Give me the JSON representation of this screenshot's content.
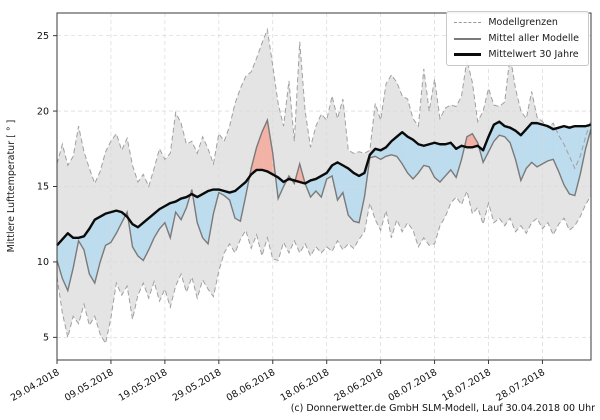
{
  "figure": {
    "ylabel": "Mittlere Lufttemperatur [ ° ]",
    "caption": "(c) Donnerwetter.de GmbH SLM-Modell, Lauf 30.04.2018 00 Uhr"
  },
  "legend": {
    "items": [
      {
        "label": "Modellgrenzen",
        "style": "dashed"
      },
      {
        "label": "Mittel aller Modelle",
        "style": "solid"
      },
      {
        "label": "Mittelwert 30 Jahre",
        "style": "bold"
      }
    ]
  },
  "chart_data": {
    "type": "line",
    "title": "",
    "xlabel": "",
    "ylabel": "Mittlere Lufttemperatur [ ° ]",
    "grid": true,
    "legend_position": "upper right",
    "ylim": [
      3.5,
      26.5
    ],
    "y_ticks": [
      5,
      10,
      15,
      20,
      25
    ],
    "x_tick_labels": [
      "29.04.2018",
      "09.05.2018",
      "19.05.2018",
      "29.05.2018",
      "08.06.2018",
      "18.06.2018",
      "28.06.2018",
      "08.07.2018",
      "18.07.2018",
      "28.07.2018"
    ],
    "x_tick_days": [
      0,
      10,
      20,
      30,
      40,
      50,
      60,
      70,
      80,
      90
    ],
    "x_days_total": 99,
    "colors": {
      "band_fill": "#e4e4e4",
      "bound_line": "#a0a0a0",
      "model_mean_line": "#7a7a7a",
      "climate_mean_line": "#0a0a0a",
      "fill_model_above": "#f2b2a6",
      "fill_model_below": "#bddcee",
      "grid": "#d9d9d9",
      "spine": "#3a3a3a"
    },
    "series": [
      {
        "name": "Modellgrenzen (Obergrenze)",
        "style": "dashed",
        "values": [
          16.5,
          17.8,
          16.4,
          17.0,
          19.0,
          17.3,
          16.2,
          15.2,
          16.0,
          17.3,
          18.0,
          18.5,
          17.4,
          18.2,
          16.4,
          15.3,
          15.8,
          15.0,
          16.2,
          17.5,
          16.8,
          17.2,
          19.9,
          19.2,
          17.8,
          18.0,
          17.2,
          18.3,
          17.5,
          16.5,
          18.5,
          18.0,
          19.0,
          20.5,
          21.5,
          22.3,
          22.6,
          23.5,
          24.5,
          25.4,
          23.0,
          20.5,
          19.0,
          22.0,
          18.0,
          24.6,
          20.0,
          17.6,
          19.0,
          19.8,
          19.4,
          21.0,
          19.5,
          20.8,
          17.4,
          17.2,
          17.3,
          17.2,
          17.4,
          20.5,
          19.4,
          21.8,
          22.4,
          21.9,
          21.0,
          20.8,
          19.5,
          19.0,
          22.8,
          20.0,
          22.1,
          19.5,
          20.2,
          20.4,
          20.3,
          21.0,
          23.4,
          21.9,
          19.3,
          20.0,
          21.5,
          20.4,
          20.3,
          20.6,
          23.7,
          21.5,
          20.0,
          19.5,
          21.3,
          19.6,
          19.3,
          18.9,
          19.2,
          18.4,
          17.8,
          17.0,
          16.2,
          17.0,
          18.3,
          19.4
        ]
      },
      {
        "name": "Modellgrenzen (Untergrenze)",
        "style": "dashed",
        "values": [
          9.0,
          6.6,
          5.0,
          6.4,
          5.9,
          7.2,
          5.8,
          6.4,
          5.2,
          4.6,
          6.3,
          8.6,
          7.8,
          8.4,
          6.2,
          7.8,
          8.6,
          7.6,
          8.7,
          7.4,
          8.2,
          7.0,
          8.4,
          9.2,
          8.0,
          9.0,
          7.6,
          8.8,
          8.2,
          7.7,
          9.4,
          10.6,
          11.2,
          10.6,
          11.5,
          12.1,
          10.9,
          11.8,
          10.4,
          11.6,
          10.2,
          10.1,
          11.3,
          10.6,
          11.4,
          10.6,
          11.2,
          10.4,
          11.0,
          10.6,
          11.0,
          10.7,
          11.4,
          10.8,
          11.2,
          10.9,
          11.5,
          12.0,
          13.9,
          12.8,
          12.1,
          13.4,
          11.6,
          12.8,
          12.0,
          12.6,
          12.1,
          11.0,
          11.6,
          11.1,
          11.2,
          12.4,
          13.0,
          13.9,
          14.3,
          13.8,
          14.7,
          13.2,
          13.6,
          12.5,
          13.9,
          12.6,
          12.9,
          12.4,
          12.9,
          12.0,
          12.4,
          11.9,
          12.6,
          12.9,
          12.2,
          12.6,
          11.8,
          12.5,
          12.9,
          12.1,
          12.4,
          13.0,
          13.8,
          14.4
        ]
      },
      {
        "name": "Mittel aller Modelle",
        "style": "solid",
        "values": [
          10.1,
          8.9,
          8.1,
          9.6,
          11.4,
          10.8,
          9.2,
          8.6,
          10.0,
          11.1,
          11.3,
          11.9,
          12.6,
          13.3,
          11.0,
          10.4,
          10.1,
          10.8,
          11.6,
          12.2,
          12.6,
          11.6,
          13.3,
          12.8,
          13.6,
          14.8,
          12.6,
          11.6,
          11.2,
          13.2,
          14.6,
          14.4,
          14.1,
          12.9,
          12.7,
          14.4,
          16.2,
          17.6,
          18.6,
          19.4,
          17.2,
          14.2,
          15.0,
          15.7,
          15.2,
          16.5,
          15.2,
          14.3,
          14.7,
          14.3,
          15.5,
          15.7,
          14.1,
          14.6,
          13.1,
          12.7,
          12.6,
          14.3,
          16.9,
          17.0,
          16.8,
          17.0,
          17.1,
          17.0,
          16.5,
          15.9,
          15.5,
          15.9,
          16.4,
          16.3,
          15.6,
          15.3,
          15.7,
          16.1,
          15.6,
          16.8,
          18.3,
          18.5,
          17.9,
          16.6,
          17.3,
          18.0,
          18.4,
          18.3,
          17.9,
          16.8,
          15.4,
          16.2,
          16.6,
          16.3,
          16.5,
          16.7,
          16.8,
          16.0,
          15.1,
          14.5,
          14.4,
          15.8,
          17.5,
          18.8
        ]
      },
      {
        "name": "Mittelwert 30 Jahre",
        "style": "bold",
        "values": [
          11.1,
          11.5,
          11.9,
          11.6,
          11.6,
          11.7,
          12.2,
          12.8,
          13.0,
          13.2,
          13.3,
          13.4,
          13.3,
          13.0,
          12.5,
          12.3,
          12.6,
          12.9,
          13.2,
          13.5,
          13.7,
          13.9,
          14.0,
          14.2,
          14.3,
          14.5,
          14.3,
          14.5,
          14.7,
          14.8,
          14.8,
          14.7,
          14.6,
          14.7,
          15.0,
          15.3,
          15.8,
          16.1,
          16.1,
          16.0,
          15.8,
          15.6,
          15.3,
          15.5,
          15.4,
          15.3,
          15.2,
          15.4,
          15.5,
          15.7,
          15.9,
          16.4,
          16.6,
          16.4,
          16.2,
          15.9,
          15.7,
          15.9,
          17.1,
          17.5,
          17.4,
          17.6,
          18.0,
          18.3,
          18.6,
          18.3,
          18.1,
          17.8,
          17.7,
          17.8,
          17.9,
          17.8,
          17.8,
          17.9,
          17.5,
          17.7,
          17.6,
          17.6,
          17.7,
          17.4,
          18.3,
          19.1,
          19.3,
          19.0,
          18.9,
          18.7,
          18.4,
          18.8,
          19.2,
          19.2,
          19.1,
          19.0,
          18.8,
          18.9,
          19.0,
          18.9,
          19.0,
          19.0,
          19.0,
          19.1
        ]
      }
    ]
  }
}
